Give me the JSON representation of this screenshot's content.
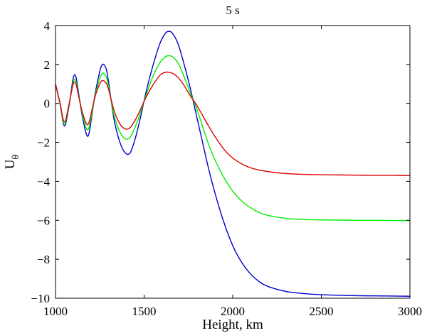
{
  "chart_data": {
    "type": "line",
    "title": "5 s",
    "xlabel": "Height, km",
    "ylabel": "U",
    "ylabel_subscript": "θ",
    "xlim": [
      1000,
      3000
    ],
    "ylim": [
      -10,
      4
    ],
    "xticks": [
      1000,
      1500,
      2000,
      2500,
      3000
    ],
    "yticks": [
      4,
      2,
      0,
      -2,
      -4,
      -6,
      -8,
      -10
    ],
    "xtick_labels": [
      "1000",
      "1500",
      "2000",
      "2500",
      "3000"
    ],
    "ytick_labels": [
      "4",
      "2",
      "0",
      "−2",
      "−4",
      "−6",
      "−8",
      "−10"
    ],
    "grid": false,
    "legend": "none",
    "x": [
      1000,
      1025,
      1050,
      1075,
      1100,
      1115,
      1130,
      1150,
      1175,
      1190,
      1210,
      1230,
      1260,
      1285,
      1300,
      1330,
      1360,
      1390,
      1420,
      1450,
      1480,
      1510,
      1550,
      1590,
      1620,
      1640,
      1660,
      1690,
      1720,
      1760,
      1790,
      1820,
      1860,
      1900,
      1950,
      2000,
      2050,
      2100,
      2150,
      2200,
      2300,
      2400,
      2500,
      2600,
      2700,
      2800,
      2900,
      3000
    ],
    "series": [
      {
        "name": "blue",
        "color": "#0000cc",
        "values": [
          1.0,
          0.0,
          -1.15,
          -0.2,
          1.3,
          1.37,
          0.55,
          -0.6,
          -1.6,
          -1.5,
          -0.3,
          0.8,
          1.95,
          1.8,
          1.05,
          -0.8,
          -1.9,
          -2.5,
          -2.55,
          -1.8,
          -0.7,
          0.55,
          1.95,
          3.1,
          3.6,
          3.7,
          3.6,
          3.1,
          2.2,
          0.8,
          -0.4,
          -1.6,
          -3.2,
          -4.6,
          -6.1,
          -7.3,
          -8.15,
          -8.75,
          -9.15,
          -9.4,
          -9.65,
          -9.76,
          -9.82,
          -9.85,
          -9.87,
          -9.88,
          -9.89,
          -9.9
        ]
      },
      {
        "name": "green",
        "color": "#00ee00",
        "values": [
          1.0,
          0.0,
          -1.05,
          -0.15,
          1.1,
          1.15,
          0.45,
          -0.5,
          -1.3,
          -1.2,
          -0.25,
          0.65,
          1.5,
          1.4,
          0.85,
          -0.6,
          -1.4,
          -1.8,
          -1.75,
          -1.2,
          -0.45,
          0.4,
          1.4,
          2.1,
          2.4,
          2.45,
          2.4,
          2.1,
          1.5,
          0.55,
          -0.1,
          -0.9,
          -2.0,
          -2.9,
          -3.8,
          -4.5,
          -5.0,
          -5.35,
          -5.6,
          -5.75,
          -5.9,
          -5.96,
          -5.98,
          -5.99,
          -6.0,
          -6.0,
          -6.01,
          -6.01
        ]
      },
      {
        "name": "red",
        "color": "#dd0000",
        "values": [
          1.0,
          0.05,
          -0.95,
          -0.1,
          1.0,
          1.0,
          0.4,
          -0.4,
          -1.05,
          -0.95,
          -0.15,
          0.55,
          1.15,
          1.05,
          0.7,
          -0.35,
          -1.0,
          -1.3,
          -1.25,
          -0.85,
          -0.3,
          0.3,
          0.95,
          1.45,
          1.6,
          1.6,
          1.55,
          1.35,
          1.0,
          0.4,
          0.0,
          -0.45,
          -1.1,
          -1.7,
          -2.35,
          -2.8,
          -3.1,
          -3.3,
          -3.42,
          -3.5,
          -3.6,
          -3.64,
          -3.66,
          -3.67,
          -3.68,
          -3.69,
          -3.69,
          -3.7
        ]
      }
    ]
  }
}
